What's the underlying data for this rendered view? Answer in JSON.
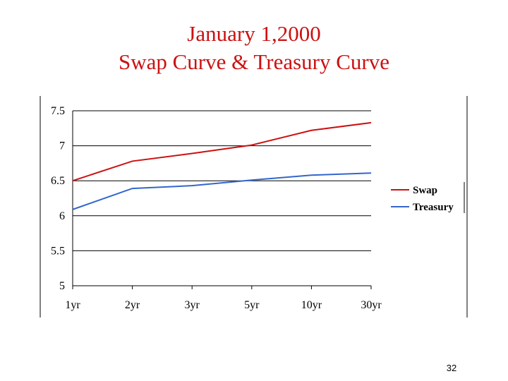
{
  "slide": {
    "title_line1": "January 1,2000",
    "title_line2": "Swap Curve & Treasury Curve",
    "page_number": "32"
  },
  "colors": {
    "title": "#cc1111",
    "swap": "#cc1111",
    "treasury": "#3366cc",
    "background": "#ffffff"
  },
  "chart_data": {
    "type": "line",
    "title": "",
    "xlabel": "",
    "ylabel": "",
    "categories": [
      "1yr",
      "2yr",
      "3yr",
      "5yr",
      "10yr",
      "30yr"
    ],
    "ylim": [
      5,
      7.5
    ],
    "yticks": [
      5,
      5.5,
      6,
      6.5,
      7,
      7.5
    ],
    "ytick_labels": [
      "5",
      "5.5",
      "6",
      "6.5",
      "7",
      "7.5"
    ],
    "grid": true,
    "legend_position": "right",
    "series": [
      {
        "name": "Swap",
        "values": [
          6.5,
          6.78,
          6.89,
          7.01,
          7.22,
          7.33
        ]
      },
      {
        "name": "Treasury",
        "values": [
          6.09,
          6.39,
          6.43,
          6.51,
          6.58,
          6.61
        ]
      }
    ]
  }
}
